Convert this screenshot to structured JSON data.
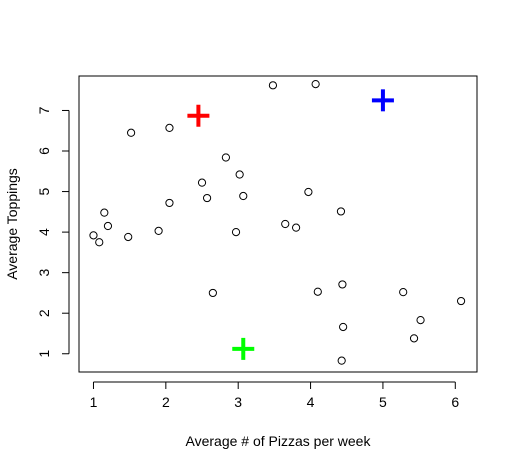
{
  "chart_data": {
    "type": "scatter",
    "title": "",
    "xlabel": "Average # of Pizzas per week",
    "ylabel": "Average Toppings",
    "xlim": [
      0.8,
      6.3
    ],
    "ylim": [
      0.55,
      7.85
    ],
    "xticks": [
      "1",
      "2",
      "3",
      "4",
      "5",
      "6"
    ],
    "yticks": [
      "1",
      "2",
      "3",
      "4",
      "5",
      "6",
      "7"
    ],
    "grid": false,
    "series": [
      {
        "marker": "open-circle",
        "color": "#000000",
        "points": [
          {
            "x": 1.0,
            "y": 3.92
          },
          {
            "x": 1.08,
            "y": 3.75
          },
          {
            "x": 1.15,
            "y": 4.48
          },
          {
            "x": 1.2,
            "y": 4.15
          },
          {
            "x": 1.48,
            "y": 3.88
          },
          {
            "x": 1.52,
            "y": 6.45
          },
          {
            "x": 1.9,
            "y": 4.03
          },
          {
            "x": 2.05,
            "y": 6.57
          },
          {
            "x": 2.05,
            "y": 4.72
          },
          {
            "x": 2.5,
            "y": 5.22
          },
          {
            "x": 2.57,
            "y": 4.84
          },
          {
            "x": 2.65,
            "y": 2.5
          },
          {
            "x": 2.83,
            "y": 5.84
          },
          {
            "x": 2.97,
            "y": 4.0
          },
          {
            "x": 3.02,
            "y": 5.42
          },
          {
            "x": 3.07,
            "y": 4.89
          },
          {
            "x": 3.48,
            "y": 7.62
          },
          {
            "x": 3.65,
            "y": 4.2
          },
          {
            "x": 3.8,
            "y": 4.11
          },
          {
            "x": 3.97,
            "y": 4.99
          },
          {
            "x": 4.07,
            "y": 7.65
          },
          {
            "x": 4.1,
            "y": 2.53
          },
          {
            "x": 4.42,
            "y": 4.51
          },
          {
            "x": 4.44,
            "y": 2.71
          },
          {
            "x": 4.45,
            "y": 1.66
          },
          {
            "x": 4.43,
            "y": 0.83
          },
          {
            "x": 5.28,
            "y": 2.52
          },
          {
            "x": 5.43,
            "y": 1.38
          },
          {
            "x": 5.52,
            "y": 1.83
          },
          {
            "x": 6.08,
            "y": 2.3
          }
        ]
      },
      {
        "marker": "plus",
        "points": [
          {
            "x": 2.45,
            "y": 6.87,
            "color": "#ff0000"
          },
          {
            "x": 5.0,
            "y": 7.25,
            "color": "#0000ff"
          },
          {
            "x": 3.07,
            "y": 1.12,
            "color": "#00ff00"
          }
        ]
      }
    ]
  }
}
